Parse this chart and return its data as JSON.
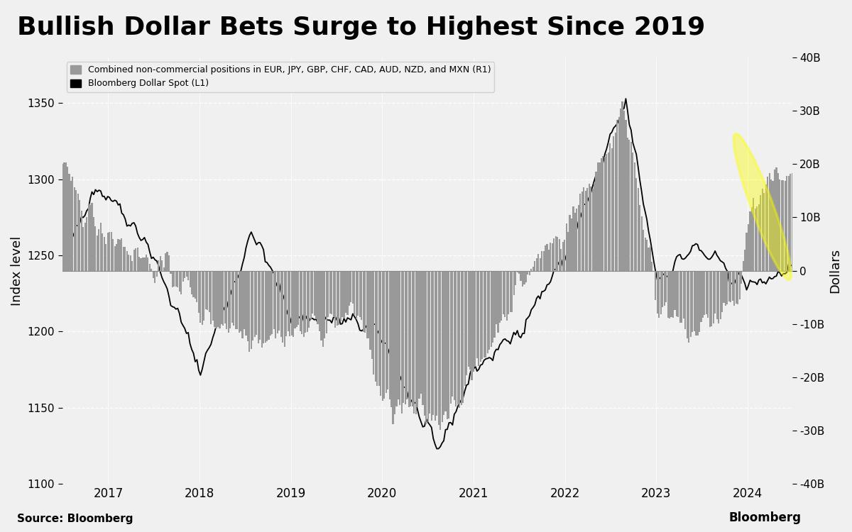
{
  "title": "Bullish Dollar Bets Surge to Highest Since 2019",
  "title_fontsize": 26,
  "title_fontweight": "bold",
  "ylabel_left": "Index level",
  "ylabel_right": "Dollars",
  "source_text": "Source: Bloomberg",
  "bloomberg_text": "Bloomberg",
  "legend_label1": "Combined non-commercial positions in EUR, JPY, GBP, CHF, CAD, AUD, NZD, and MXN (R1)",
  "legend_label2": "Bloomberg Dollar Spot (L1)",
  "bar_color": "#999999",
  "line_color": "#000000",
  "background_color": "#f0f0f0",
  "ylim_left": [
    1100,
    1380
  ],
  "ylim_right": [
    -40000000000,
    40000000000
  ],
  "yticks_left": [
    1100,
    1150,
    1200,
    1250,
    1300,
    1350
  ],
  "yticks_right": [
    -40000000000,
    -30000000000,
    -20000000000,
    -10000000000,
    0,
    10000000000,
    20000000000,
    30000000000,
    40000000000
  ],
  "ytick_labels_right": [
    "-40B",
    "-30B",
    "-20B",
    "-10B",
    "0",
    "10B",
    "20B",
    "30B",
    "40B"
  ]
}
